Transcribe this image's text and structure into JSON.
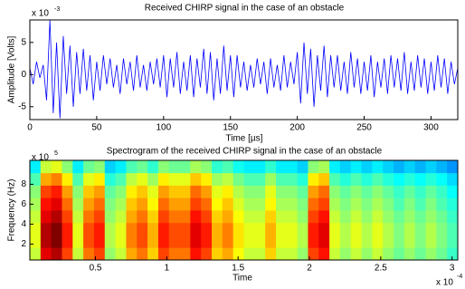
{
  "chart_data": [
    {
      "type": "line",
      "title": "Received CHIRP signal in the case of an obstacle",
      "xlabel": "Time [µs]",
      "ylabel": "Amplitude [Volts]",
      "y_multiplier": {
        "base": "x 10",
        "exponent": "-3"
      },
      "xlim": [
        0,
        320
      ],
      "ylim": [
        -7,
        8.5
      ],
      "xticks": [
        0,
        50,
        100,
        150,
        200,
        250,
        300
      ],
      "yticks": [
        -5,
        0,
        5
      ],
      "x": [
        0,
        2.5,
        5,
        7.5,
        10,
        12.5,
        15,
        17.5,
        20,
        22.5,
        25,
        27.5,
        30,
        32.5,
        35,
        37.5,
        40,
        42.5,
        45,
        47.5,
        50,
        52.5,
        55,
        57.5,
        60,
        62.5,
        65,
        67.5,
        70,
        72.5,
        75,
        77.5,
        80,
        82.5,
        85,
        87.5,
        90,
        92.5,
        95,
        97.5,
        100,
        102.5,
        105,
        107.5,
        110,
        112.5,
        115,
        117.5,
        120,
        122.5,
        125,
        127.5,
        130,
        132.5,
        135,
        137.5,
        140,
        142.5,
        145,
        147.5,
        150,
        152.5,
        155,
        157.5,
        160,
        162.5,
        165,
        167.5,
        170,
        172.5,
        175,
        177.5,
        180,
        182.5,
        185,
        187.5,
        190,
        192.5,
        195,
        197.5,
        200,
        202.5,
        205,
        207.5,
        210,
        212.5,
        215,
        217.5,
        220,
        222.5,
        225,
        227.5,
        230,
        232.5,
        235,
        237.5,
        240,
        242.5,
        245,
        247.5,
        250,
        252.5,
        255,
        257.5,
        260,
        262.5,
        265,
        267.5,
        270,
        272.5,
        275,
        277.5,
        280,
        282.5,
        285,
        287.5,
        290,
        292.5,
        295,
        297.5,
        300,
        302.5,
        305,
        307.5,
        310,
        312.5,
        315,
        317.5,
        320
      ],
      "series": [
        {
          "color": "#0000ff",
          "values": [
            1,
            -1.5,
            2,
            -0.5,
            1.5,
            -4,
            8.5,
            -6,
            5,
            -6.8,
            6,
            -3,
            4.5,
            -5,
            3.5,
            -3,
            4,
            -2.5,
            3,
            -4,
            2,
            -2.5,
            3,
            -1.5,
            2.5,
            -2,
            1.5,
            -3,
            2.5,
            -1.5,
            2,
            -2.5,
            3,
            -2,
            1.5,
            -2.5,
            2,
            -1.5,
            2.5,
            -2,
            3,
            -3.5,
            2.5,
            -2,
            3.5,
            -3,
            2,
            -2.5,
            3,
            -3.5,
            2.5,
            -2,
            4,
            -3,
            3.5,
            -4,
            2.5,
            -3,
            4.5,
            -2.5,
            3,
            -3.5,
            3,
            -2,
            2,
            -2.5,
            1.5,
            -2,
            2.5,
            -1.5,
            2,
            -3,
            2.5,
            -2,
            1.5,
            -2.5,
            3,
            -2,
            2,
            -1.5,
            3.5,
            -4.5,
            5,
            -3,
            4,
            -5,
            3,
            -2.5,
            4.5,
            -3.5,
            3,
            -2,
            3,
            -2.5,
            2,
            -3,
            3.5,
            -2,
            2.5,
            -3,
            2,
            -2.5,
            3,
            -3.5,
            2,
            -2,
            2.5,
            -3,
            3,
            -2,
            2.5,
            -2.5,
            3.5,
            -3,
            2,
            -2.5,
            3,
            -2,
            2.5,
            -3,
            2,
            -2.5,
            3,
            -2,
            2.5,
            -3,
            2,
            -1.5,
            1
          ]
        }
      ]
    },
    {
      "type": "heatmap",
      "title": "Spectrogram of the received CHIRP signal in the case of an obstacle",
      "xlabel": "Time",
      "ylabel": "Frequency (Hz)",
      "x_multiplier": {
        "base": "x 10",
        "exponent": "-4"
      },
      "y_multiplier": {
        "base": "x 10",
        "exponent": "5"
      },
      "xlim": [
        0.04,
        3.04
      ],
      "ylim": [
        0.4,
        10.4
      ],
      "xticks": [
        0.5,
        1,
        1.5,
        2,
        2.5,
        3
      ],
      "yticks": [
        2,
        4,
        6,
        8
      ],
      "colormap": "jet",
      "xbins": [
        0.04,
        0.115,
        0.19,
        0.265,
        0.34,
        0.415,
        0.49,
        0.565,
        0.64,
        0.715,
        0.79,
        0.865,
        0.94,
        1.015,
        1.09,
        1.165,
        1.24,
        1.315,
        1.39,
        1.465,
        1.54,
        1.615,
        1.69,
        1.765,
        1.84,
        1.915,
        1.99,
        2.065,
        2.14,
        2.215,
        2.29,
        2.365,
        2.44,
        2.515,
        2.59,
        2.665,
        2.74,
        2.815,
        2.89,
        2.965,
        3.04
      ],
      "ybins": [
        0.4,
        1.65,
        2.9,
        4.15,
        5.4,
        6.65,
        7.9,
        9.15,
        10.4
      ],
      "z": [
        [
          0.57,
          0.9,
          0.95,
          0.81,
          0.57,
          0.76,
          0.81,
          0.52,
          0.57,
          0.71,
          0.76,
          0.67,
          0.81,
          0.76,
          0.76,
          0.86,
          0.81,
          0.67,
          0.71,
          0.62,
          0.57,
          0.57,
          0.67,
          0.57,
          0.57,
          0.52,
          0.81,
          0.86,
          0.57,
          0.52,
          0.57,
          0.52,
          0.57,
          0.52,
          0.48,
          0.52,
          0.48,
          0.52,
          0.48,
          0.43
        ],
        [
          0.6,
          0.95,
          1.0,
          0.85,
          0.6,
          0.8,
          0.85,
          0.55,
          0.6,
          0.75,
          0.8,
          0.7,
          0.85,
          0.8,
          0.8,
          0.9,
          0.85,
          0.7,
          0.75,
          0.65,
          0.6,
          0.6,
          0.7,
          0.6,
          0.6,
          0.55,
          0.85,
          0.9,
          0.6,
          0.55,
          0.6,
          0.55,
          0.6,
          0.55,
          0.5,
          0.55,
          0.5,
          0.55,
          0.5,
          0.45
        ],
        [
          0.6,
          0.95,
          1.0,
          0.85,
          0.6,
          0.8,
          0.85,
          0.55,
          0.6,
          0.75,
          0.8,
          0.7,
          0.85,
          0.8,
          0.8,
          0.9,
          0.85,
          0.7,
          0.75,
          0.65,
          0.6,
          0.6,
          0.7,
          0.6,
          0.6,
          0.55,
          0.85,
          0.9,
          0.6,
          0.55,
          0.6,
          0.55,
          0.6,
          0.55,
          0.5,
          0.55,
          0.5,
          0.55,
          0.5,
          0.45
        ],
        [
          0.57,
          0.9,
          0.95,
          0.81,
          0.57,
          0.76,
          0.81,
          0.52,
          0.57,
          0.71,
          0.76,
          0.67,
          0.81,
          0.76,
          0.76,
          0.86,
          0.81,
          0.67,
          0.71,
          0.62,
          0.57,
          0.57,
          0.67,
          0.57,
          0.57,
          0.52,
          0.81,
          0.86,
          0.57,
          0.52,
          0.57,
          0.52,
          0.57,
          0.52,
          0.48,
          0.52,
          0.48,
          0.52,
          0.48,
          0.43
        ],
        [
          0.54,
          0.86,
          0.9,
          0.77,
          0.54,
          0.72,
          0.77,
          0.5,
          0.54,
          0.68,
          0.72,
          0.63,
          0.77,
          0.72,
          0.72,
          0.81,
          0.77,
          0.63,
          0.68,
          0.59,
          0.54,
          0.54,
          0.63,
          0.54,
          0.54,
          0.5,
          0.77,
          0.81,
          0.54,
          0.5,
          0.54,
          0.5,
          0.54,
          0.5,
          0.45,
          0.5,
          0.45,
          0.5,
          0.45,
          0.41
        ],
        [
          0.51,
          0.81,
          0.85,
          0.72,
          0.51,
          0.68,
          0.72,
          0.47,
          0.51,
          0.64,
          0.68,
          0.6,
          0.72,
          0.68,
          0.68,
          0.77,
          0.72,
          0.6,
          0.64,
          0.55,
          0.51,
          0.51,
          0.6,
          0.51,
          0.51,
          0.47,
          0.72,
          0.77,
          0.51,
          0.47,
          0.51,
          0.47,
          0.51,
          0.47,
          0.43,
          0.47,
          0.43,
          0.47,
          0.43,
          0.38
        ],
        [
          0.45,
          0.71,
          0.75,
          0.64,
          0.45,
          0.6,
          0.64,
          0.41,
          0.45,
          0.56,
          0.6,
          0.53,
          0.64,
          0.6,
          0.6,
          0.68,
          0.64,
          0.53,
          0.56,
          0.49,
          0.45,
          0.45,
          0.53,
          0.45,
          0.45,
          0.41,
          0.64,
          0.68,
          0.45,
          0.41,
          0.45,
          0.41,
          0.45,
          0.41,
          0.38,
          0.41,
          0.38,
          0.41,
          0.38,
          0.34
        ],
        [
          0.36,
          0.57,
          0.6,
          0.51,
          0.36,
          0.48,
          0.51,
          0.33,
          0.36,
          0.45,
          0.48,
          0.42,
          0.51,
          0.48,
          0.48,
          0.54,
          0.51,
          0.42,
          0.45,
          0.39,
          0.36,
          0.36,
          0.42,
          0.36,
          0.36,
          0.33,
          0.51,
          0.54,
          0.36,
          0.33,
          0.36,
          0.33,
          0.36,
          0.33,
          0.3,
          0.33,
          0.3,
          0.33,
          0.3,
          0.27
        ]
      ]
    }
  ]
}
